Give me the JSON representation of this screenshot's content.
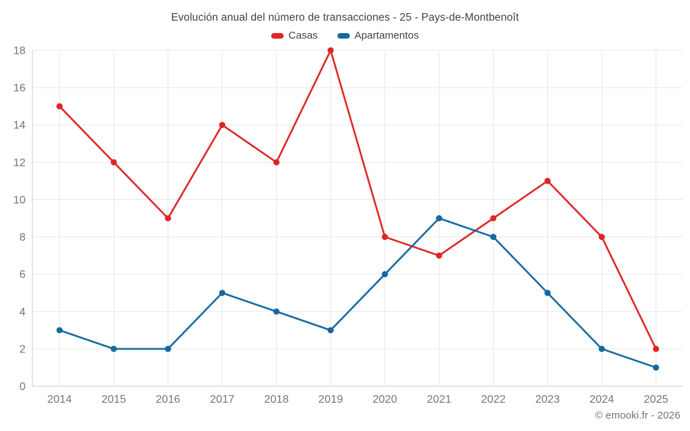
{
  "page": {
    "footer_credit": "© emooki.fr - 2026"
  },
  "chart_data": {
    "type": "line",
    "title": "Evolución anual del número de transacciones - 25 - Pays-de-Montbenoît",
    "categories": [
      "2014",
      "2015",
      "2016",
      "2017",
      "2018",
      "2019",
      "2020",
      "2021",
      "2022",
      "2023",
      "2024",
      "2025"
    ],
    "series": [
      {
        "name": "Casas",
        "color": "#df2626",
        "values": [
          15,
          12,
          9,
          14,
          12,
          18,
          8,
          7,
          9,
          11,
          8,
          2
        ]
      },
      {
        "name": "Apartamentos",
        "color": "#1569a0",
        "values": [
          3,
          2,
          2,
          5,
          4,
          3,
          6,
          9,
          8,
          5,
          2,
          1
        ]
      }
    ],
    "xlabel": "",
    "ylabel": "",
    "ylim": [
      0,
      18
    ],
    "y_ticks": [
      0,
      2,
      4,
      6,
      8,
      10,
      12,
      14,
      16,
      18
    ],
    "grid": true,
    "legend_position": "top",
    "colors": {
      "grid": "#e8e8e8",
      "axis": "#cccccc",
      "tick_label": "#757575",
      "title_text": "#424242",
      "background": "#ffffff"
    }
  }
}
